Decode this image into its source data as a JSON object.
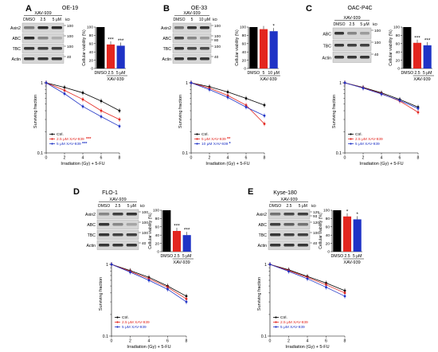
{
  "figure": {
    "panels": [
      {
        "letter": "A",
        "title": "OE-19",
        "blot": {
          "header": "XAV-939",
          "kd": "kD",
          "lanes": [
            "DMSO",
            "2.5",
            "5 μM"
          ],
          "rows": [
            {
              "label": "Axin2",
              "markers": [
                "100"
              ],
              "bands": [
                0.55,
                0.95,
                0.95
              ]
            },
            {
              "label": "ABC",
              "markers": [
                "100"
              ],
              "bands": [
                0.95,
                0.5,
                0.3
              ]
            },
            {
              "label": "TBC",
              "markers": [
                "100"
              ],
              "bands": [
                0.9,
                0.85,
                0.85
              ]
            },
            {
              "label": "Actin",
              "markers": [
                "40"
              ],
              "bands": [
                0.9,
                0.9,
                0.9
              ]
            }
          ]
        },
        "viability": {
          "ylabel": "Cellular viability (%)",
          "ticks": [
            "0",
            "20",
            "40",
            "60",
            "80",
            "100"
          ],
          "categories": [
            "DMSO",
            "2.5",
            "5 μM"
          ],
          "xlabel": "XAV-939",
          "values": [
            100,
            58,
            55
          ],
          "sig": [
            "",
            "***",
            "***"
          ]
        },
        "survival": {
          "ylabel": "Surviving fraction",
          "xlabel": "Irradiation (Gy) + 5-FU",
          "yticks": [
            "0.1",
            "1"
          ],
          "xticks": [
            "0",
            "2",
            "4",
            "6",
            "8"
          ],
          "series": [
            {
              "name": "Ctrl.",
              "color": "#000000",
              "sig": "",
              "values": [
                1.0,
                0.86,
                0.72,
                0.55,
                0.4
              ]
            },
            {
              "name": "2.5 μM XAV-939",
              "color": "#e3261f",
              "sig": "***",
              "values": [
                1.0,
                0.78,
                0.58,
                0.4,
                0.3
              ]
            },
            {
              "name": "5 μM XAV-939",
              "color": "#1f33c6",
              "sig": "***",
              "values": [
                1.0,
                0.7,
                0.46,
                0.33,
                0.24
              ]
            }
          ]
        }
      },
      {
        "letter": "B",
        "title": "OE-33",
        "blot": {
          "header": "XAV-939",
          "kd": "kD",
          "lanes": [
            "DMSO",
            "5",
            "10 μM"
          ],
          "rows": [
            {
              "label": "Axin2",
              "markers": [
                "100"
              ],
              "bands": [
                0.6,
                0.9,
                0.9
              ]
            },
            {
              "label": "ABC",
              "markers": [
                "100",
                "80"
              ],
              "bands": [
                0.8,
                0.5,
                0.4
              ]
            },
            {
              "label": "TBC",
              "markers": [
                "100"
              ],
              "bands": [
                0.9,
                0.8,
                0.8
              ]
            },
            {
              "label": "Actin",
              "markers": [
                "40"
              ],
              "bands": [
                0.9,
                0.9,
                0.9
              ]
            }
          ]
        },
        "viability": {
          "ylabel": "Cellular viability (%)",
          "ticks": [
            "0",
            "20",
            "40",
            "60",
            "80",
            "100"
          ],
          "categories": [
            "DMSO",
            "5",
            "10 μM"
          ],
          "xlabel": "XAV-939",
          "values": [
            100,
            95,
            90
          ],
          "sig": [
            "",
            "",
            "*"
          ]
        },
        "survival": {
          "ylabel": "Surviving fraction",
          "xlabel": "Irradiation (Gy) + 5-FU",
          "yticks": [
            "0.1",
            "1"
          ],
          "xticks": [
            "0",
            "2",
            "4",
            "6",
            "8"
          ],
          "series": [
            {
              "name": "Ctrl.",
              "color": "#000000",
              "sig": "",
              "values": [
                1.0,
                0.88,
                0.74,
                0.6,
                0.48
              ]
            },
            {
              "name": "5 μM XAV-939",
              "color": "#e3261f",
              "sig": "**",
              "values": [
                1.0,
                0.84,
                0.66,
                0.48,
                0.26
              ]
            },
            {
              "name": "10 μM XAV-939",
              "color": "#1f33c6",
              "sig": "*",
              "values": [
                1.0,
                0.8,
                0.62,
                0.45,
                0.34
              ]
            }
          ]
        }
      },
      {
        "letter": "C",
        "title": "OAC-P4C",
        "blot": {
          "header": "XAV-939",
          "kd": "kD",
          "lanes": [
            "DMSO",
            "2.5",
            "5 μM"
          ],
          "rows": [
            {
              "label": "ABC",
              "markers": [
                "100"
              ],
              "bands": [
                0.9,
                0.5,
                0.4
              ]
            },
            {
              "label": "TBC",
              "markers": [
                "100"
              ],
              "bands": [
                0.9,
                0.85,
                0.85
              ]
            },
            {
              "label": "Actin",
              "markers": [
                "40"
              ],
              "bands": [
                0.9,
                0.9,
                0.9
              ]
            }
          ]
        },
        "viability": {
          "ylabel": "Cellular viability (%)",
          "ticks": [
            "0",
            "20",
            "40",
            "60",
            "80",
            "100"
          ],
          "categories": [
            "DMSO",
            "2.5",
            "5 μM"
          ],
          "xlabel": "XAV-939",
          "values": [
            100,
            62,
            56
          ],
          "sig": [
            "",
            "***",
            "***"
          ]
        },
        "survival": {
          "ylabel": "Surviving fraction",
          "xlabel": "Irradiation (Gy) + 5-FU",
          "yticks": [
            "0.1",
            "1"
          ],
          "xticks": [
            "0",
            "2",
            "4",
            "6",
            "8"
          ],
          "series": [
            {
              "name": "Ctrl.",
              "color": "#000000",
              "sig": "",
              "values": [
                1.0,
                0.86,
                0.72,
                0.58,
                0.45
              ]
            },
            {
              "name": "2.5 μM XAV-939",
              "color": "#e3261f",
              "sig": "",
              "values": [
                1.0,
                0.85,
                0.7,
                0.55,
                0.38
              ]
            },
            {
              "name": "5 μM XAV-939",
              "color": "#1f33c6",
              "sig": "",
              "values": [
                1.0,
                0.84,
                0.69,
                0.56,
                0.43
              ]
            }
          ]
        }
      },
      {
        "letter": "D",
        "title": "FLO-1",
        "blot": {
          "header": "XAV-939",
          "kd": "kD",
          "lanes": [
            "DMSO",
            "2.5",
            "5 μM"
          ],
          "rows": [
            {
              "label": "Axin2",
              "markers": [
                "100"
              ],
              "bands": [
                0.5,
                0.85,
                0.9
              ]
            },
            {
              "label": "ABC",
              "markers": [
                "100"
              ],
              "bands": [
                0.9,
                0.5,
                0.35
              ]
            },
            {
              "label": "TBC",
              "markers": [
                "100"
              ],
              "bands": [
                0.9,
                0.85,
                0.85
              ]
            },
            {
              "label": "Actin",
              "markers": [
                "40"
              ],
              "bands": [
                0.9,
                0.9,
                0.9
              ]
            }
          ]
        },
        "viability": {
          "ylabel": "Cellular viability (%)",
          "ticks": [
            "0",
            "20",
            "40",
            "60",
            "80",
            "100"
          ],
          "categories": [
            "DMSO",
            "2.5",
            "5 μM"
          ],
          "xlabel": "XAV-939",
          "values": [
            100,
            50,
            40
          ],
          "sig": [
            "",
            "***",
            "***"
          ]
        },
        "survival": {
          "ylabel": "Surviving fraction",
          "xlabel": "Irradiation (Gy) + 5-FU",
          "yticks": [
            "0.1",
            "1"
          ],
          "xticks": [
            "0",
            "2",
            "4",
            "6",
            "8"
          ],
          "series": [
            {
              "name": "Ctrl.",
              "color": "#000000",
              "sig": "",
              "values": [
                1.0,
                0.82,
                0.66,
                0.5,
                0.36
              ]
            },
            {
              "name": "2.5 μM XAV-939",
              "color": "#e3261f",
              "sig": "",
              "values": [
                1.0,
                0.8,
                0.63,
                0.48,
                0.33
              ]
            },
            {
              "name": "5 μM XAV-939",
              "color": "#1f33c6",
              "sig": "",
              "values": [
                1.0,
                0.78,
                0.6,
                0.45,
                0.3
              ]
            }
          ]
        }
      },
      {
        "letter": "E",
        "title": "Kyse-180",
        "blot": {
          "header": "XAV-939",
          "kd": "kD",
          "lanes": [
            "DMSO",
            "2.5",
            "5 μM"
          ],
          "rows": [
            {
              "label": "Axin2",
              "markers": [
                "125",
                "93"
              ],
              "bands": [
                0.6,
                0.8,
                0.85
              ]
            },
            {
              "label": "ABC",
              "markers": [
                "120"
              ],
              "bands": [
                0.85,
                0.7,
                0.6
              ]
            },
            {
              "label": "TBC",
              "markers": [
                "100"
              ],
              "bands": [
                0.9,
                0.85,
                0.85
              ]
            },
            {
              "label": "Actin",
              "markers": [
                "40"
              ],
              "bands": [
                0.9,
                0.9,
                0.9
              ]
            }
          ]
        },
        "viability": {
          "ylabel": "Cellular viability (%)",
          "ticks": [
            "0",
            "20",
            "40",
            "60",
            "80",
            "100"
          ],
          "categories": [
            "DMSO",
            "2.5",
            "5 μM"
          ],
          "xlabel": "XAV-939",
          "values": [
            100,
            85,
            78
          ],
          "sig": [
            "",
            "*",
            "*"
          ]
        },
        "survival": {
          "ylabel": "Surviving fraction",
          "xlabel": "Irradiation (Gy) + 5-FU",
          "yticks": [
            "0.1",
            "1"
          ],
          "xticks": [
            "0",
            "2",
            "4",
            "6",
            "8"
          ],
          "series": [
            {
              "name": "Ctrl.",
              "color": "#000000",
              "sig": "",
              "values": [
                1.0,
                0.84,
                0.68,
                0.55,
                0.43
              ]
            },
            {
              "name": "2.5 μM XAV-939",
              "color": "#e3261f",
              "sig": "",
              "values": [
                1.0,
                0.82,
                0.66,
                0.52,
                0.4
              ]
            },
            {
              "name": "5 μM XAV-939",
              "color": "#1f33c6",
              "sig": "",
              "values": [
                1.0,
                0.8,
                0.63,
                0.48,
                0.36
              ]
            }
          ]
        }
      }
    ]
  },
  "chart_data": [
    {
      "type": "bar",
      "title": "OE-19",
      "categories": [
        "DMSO",
        "2.5",
        "5 μM"
      ],
      "values": [
        100,
        58,
        55
      ],
      "xlabel": "XAV-939",
      "ylabel": "Cellular viability (%)",
      "ylim": [
        0,
        100
      ]
    },
    {
      "type": "bar",
      "title": "OE-33",
      "categories": [
        "DMSO",
        "5",
        "10 μM"
      ],
      "values": [
        100,
        95,
        90
      ],
      "xlabel": "XAV-939",
      "ylabel": "Cellular viability (%)",
      "ylim": [
        0,
        100
      ]
    },
    {
      "type": "bar",
      "title": "OAC-P4C",
      "categories": [
        "DMSO",
        "2.5",
        "5 μM"
      ],
      "values": [
        100,
        62,
        56
      ],
      "xlabel": "XAV-939",
      "ylabel": "Cellular viability (%)",
      "ylim": [
        0,
        100
      ]
    },
    {
      "type": "bar",
      "title": "FLO-1",
      "categories": [
        "DMSO",
        "2.5",
        "5 μM"
      ],
      "values": [
        100,
        50,
        40
      ],
      "xlabel": "XAV-939",
      "ylabel": "Cellular viability (%)",
      "ylim": [
        0,
        100
      ]
    },
    {
      "type": "bar",
      "title": "Kyse-180",
      "categories": [
        "DMSO",
        "2.5",
        "5 μM"
      ],
      "values": [
        100,
        85,
        78
      ],
      "xlabel": "XAV-939",
      "ylabel": "Cellular viability (%)",
      "ylim": [
        0,
        100
      ]
    },
    {
      "type": "line",
      "title": "OE-19",
      "x": [
        0,
        2,
        4,
        6,
        8
      ],
      "xlabel": "Irradiation (Gy) + 5-FU",
      "ylabel": "Surviving fraction",
      "yscale": "log",
      "ylim": [
        0.1,
        1
      ],
      "series": [
        {
          "name": "Ctrl.",
          "values": [
            1.0,
            0.86,
            0.72,
            0.55,
            0.4
          ]
        },
        {
          "name": "2.5 μM XAV-939",
          "values": [
            1.0,
            0.78,
            0.58,
            0.4,
            0.3
          ]
        },
        {
          "name": "5 μM XAV-939",
          "values": [
            1.0,
            0.7,
            0.46,
            0.33,
            0.24
          ]
        }
      ]
    },
    {
      "type": "line",
      "title": "OE-33",
      "x": [
        0,
        2,
        4,
        6,
        8
      ],
      "xlabel": "Irradiation (Gy) + 5-FU",
      "ylabel": "Surviving fraction",
      "yscale": "log",
      "ylim": [
        0.1,
        1
      ],
      "series": [
        {
          "name": "Ctrl.",
          "values": [
            1.0,
            0.88,
            0.74,
            0.6,
            0.48
          ]
        },
        {
          "name": "5 μM XAV-939",
          "values": [
            1.0,
            0.84,
            0.66,
            0.48,
            0.26
          ]
        },
        {
          "name": "10 μM XAV-939",
          "values": [
            1.0,
            0.8,
            0.62,
            0.45,
            0.34
          ]
        }
      ]
    },
    {
      "type": "line",
      "title": "OAC-P4C",
      "x": [
        0,
        2,
        4,
        6,
        8
      ],
      "xlabel": "Irradiation (Gy) + 5-FU",
      "ylabel": "Surviving fraction",
      "yscale": "log",
      "ylim": [
        0.1,
        1
      ],
      "series": [
        {
          "name": "Ctrl.",
          "values": [
            1.0,
            0.86,
            0.72,
            0.58,
            0.45
          ]
        },
        {
          "name": "2.5 μM XAV-939",
          "values": [
            1.0,
            0.85,
            0.7,
            0.55,
            0.38
          ]
        },
        {
          "name": "5 μM XAV-939",
          "values": [
            1.0,
            0.84,
            0.69,
            0.56,
            0.43
          ]
        }
      ]
    },
    {
      "type": "line",
      "title": "FLO-1",
      "x": [
        0,
        2,
        4,
        6,
        8
      ],
      "xlabel": "Irradiation (Gy) + 5-FU",
      "ylabel": "Surviving fraction",
      "yscale": "log",
      "ylim": [
        0.1,
        1
      ],
      "series": [
        {
          "name": "Ctrl.",
          "values": [
            1.0,
            0.82,
            0.66,
            0.5,
            0.36
          ]
        },
        {
          "name": "2.5 μM XAV-939",
          "values": [
            1.0,
            0.8,
            0.63,
            0.48,
            0.33
          ]
        },
        {
          "name": "5 μM XAV-939",
          "values": [
            1.0,
            0.78,
            0.6,
            0.45,
            0.3
          ]
        }
      ]
    },
    {
      "type": "line",
      "title": "Kyse-180",
      "x": [
        0,
        2,
        4,
        6,
        8
      ],
      "xlabel": "Irradiation (Gy) + 5-FU",
      "ylabel": "Surviving fraction",
      "yscale": "log",
      "ylim": [
        0.1,
        1
      ],
      "series": [
        {
          "name": "Ctrl.",
          "values": [
            1.0,
            0.84,
            0.68,
            0.55,
            0.43
          ]
        },
        {
          "name": "2.5 μM XAV-939",
          "values": [
            1.0,
            0.82,
            0.66,
            0.52,
            0.4
          ]
        },
        {
          "name": "5 μM XAV-939",
          "values": [
            1.0,
            0.8,
            0.63,
            0.48,
            0.36
          ]
        }
      ]
    }
  ]
}
